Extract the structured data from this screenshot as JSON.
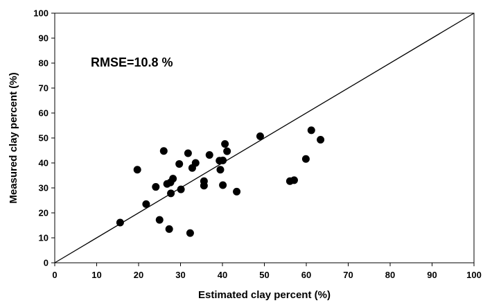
{
  "chart_data": {
    "type": "scatter",
    "xlabel": "Estimated clay percent (%)",
    "ylabel": "Measured clay percent (%)",
    "xlim": [
      0,
      100
    ],
    "ylim": [
      0,
      100
    ],
    "xticks": [
      "0",
      "10",
      "20",
      "30",
      "40",
      "50",
      "60",
      "70",
      "80",
      "90",
      "100"
    ],
    "yticks": [
      "0",
      "10",
      "20",
      "30",
      "40",
      "50",
      "60",
      "70",
      "80",
      "90",
      "100"
    ],
    "annotation": "RMSE=10.8 %",
    "reference_line": {
      "x": [
        0,
        100
      ],
      "y": [
        0,
        100
      ]
    },
    "grid": false,
    "marker_color": "#000000",
    "points": [
      {
        "x": 15.6,
        "y": 16.1
      },
      {
        "x": 19.7,
        "y": 37.3
      },
      {
        "x": 21.8,
        "y": 23.5
      },
      {
        "x": 24.1,
        "y": 30.4
      },
      {
        "x": 25.0,
        "y": 17.2
      },
      {
        "x": 26.0,
        "y": 44.8
      },
      {
        "x": 26.8,
        "y": 31.6
      },
      {
        "x": 27.3,
        "y": 13.5
      },
      {
        "x": 27.6,
        "y": 32.2
      },
      {
        "x": 27.7,
        "y": 27.8
      },
      {
        "x": 28.2,
        "y": 33.7
      },
      {
        "x": 29.7,
        "y": 39.6
      },
      {
        "x": 30.1,
        "y": 29.4
      },
      {
        "x": 31.8,
        "y": 43.9
      },
      {
        "x": 32.3,
        "y": 11.9
      },
      {
        "x": 32.8,
        "y": 38.0
      },
      {
        "x": 33.6,
        "y": 40.0
      },
      {
        "x": 35.6,
        "y": 32.7
      },
      {
        "x": 35.6,
        "y": 30.9
      },
      {
        "x": 36.9,
        "y": 43.2
      },
      {
        "x": 39.3,
        "y": 40.9
      },
      {
        "x": 39.5,
        "y": 37.3
      },
      {
        "x": 40.1,
        "y": 41.0
      },
      {
        "x": 40.1,
        "y": 31.1
      },
      {
        "x": 40.6,
        "y": 47.6
      },
      {
        "x": 41.1,
        "y": 44.7
      },
      {
        "x": 43.4,
        "y": 28.5
      },
      {
        "x": 49.0,
        "y": 50.7
      },
      {
        "x": 56.1,
        "y": 32.7
      },
      {
        "x": 57.1,
        "y": 33.1
      },
      {
        "x": 59.9,
        "y": 41.6
      },
      {
        "x": 61.2,
        "y": 53.1
      },
      {
        "x": 63.4,
        "y": 49.3
      }
    ]
  }
}
